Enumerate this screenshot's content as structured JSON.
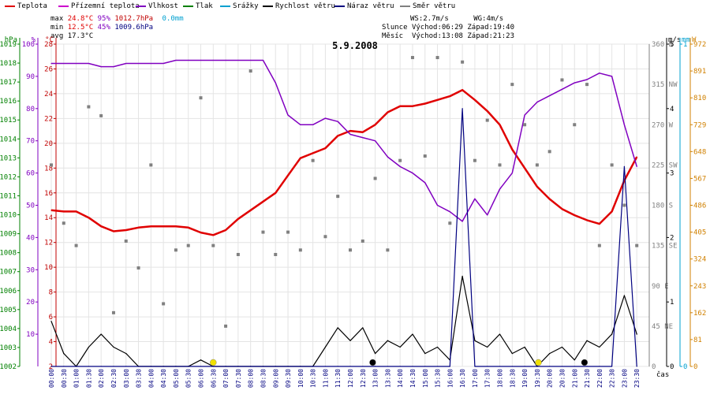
{
  "legend": [
    {
      "label": "Teplota",
      "color": "#e00000"
    },
    {
      "label": "Přízemní teplota",
      "color": "#cc00cc"
    },
    {
      "label": "Vlhkost",
      "color": "#8000c0"
    },
    {
      "label": "Tlak",
      "color": "#008000"
    },
    {
      "label": "Srážky",
      "color": "#00a0d0"
    },
    {
      "label": "Rychlost větru",
      "color": "#000000"
    },
    {
      "label": "Náraz větru",
      "color": "#000080"
    },
    {
      "label": "Směr větru",
      "color": "#808080"
    }
  ],
  "stats": {
    "max_label": "max",
    "max_temp": "24.8°C",
    "max_hum": "95%",
    "max_press": "1012.7hPa",
    "rain": "0.0mm",
    "min_label": "min",
    "min_temp": "12.5°C",
    "min_hum": "45%",
    "min_press": "1009.6hPa",
    "avg_label": "avg",
    "avg_temp": "17.3°C"
  },
  "wind_info": {
    "ws": "WS:2.7m/s",
    "wg": "WG:4m/s",
    "sun_label": "Slunce",
    "sunrise": "Východ:06:29",
    "sunset": "Západ:19:40",
    "moon_label": "Měsíc",
    "moonrise": "Východ:13:08",
    "moonset": "Západ:21:23"
  },
  "chart_data": {
    "type": "line",
    "title": "5.9.2008",
    "xlabel": "čas",
    "x_ticks": [
      "00:00",
      "00:30",
      "01:00",
      "01:30",
      "02:00",
      "02:30",
      "03:00",
      "03:30",
      "04:00",
      "04:30",
      "05:00",
      "05:30",
      "06:00",
      "06:30",
      "07:00",
      "07:30",
      "08:00",
      "08:30",
      "09:00",
      "09:30",
      "10:00",
      "10:30",
      "11:00",
      "11:30",
      "12:00",
      "12:30",
      "13:00",
      "13:30",
      "14:00",
      "14:30",
      "15:00",
      "15:30",
      "16:00",
      "16:30",
      "17:00",
      "17:30",
      "18:00",
      "18:30",
      "19:00",
      "19:30",
      "20:00",
      "20:30",
      "21:00",
      "21:30",
      "22:00",
      "22:30",
      "23:00",
      "23:30"
    ],
    "axes": {
      "hpa": {
        "label": "hPa",
        "ticks": [
          "1019",
          "1018",
          "1017",
          "1016",
          "1015",
          "1014",
          "1013",
          "1012",
          "1011",
          "1010",
          "1009",
          "1008",
          "1007",
          "1006",
          "1005",
          "1004",
          "1003",
          "1002"
        ],
        "range": [
          1002,
          1019
        ]
      },
      "pct": {
        "label": "%",
        "ticks": [
          "100",
          "90",
          "80",
          "70",
          "60",
          "50",
          "40",
          "30",
          "20",
          "10"
        ],
        "range": [
          0,
          100
        ]
      },
      "temp": {
        "label": "°C",
        "ticks": [
          "28",
          "26",
          "24",
          "22",
          "20",
          "18",
          "16",
          "14",
          "12",
          "10",
          "8",
          "6",
          "4",
          "2"
        ],
        "range": [
          2,
          28
        ]
      },
      "dir": {
        "ticks": [
          "360 N",
          "315 NW",
          "270 W",
          "225 SW",
          "180 S",
          "135 SE",
          "90 E",
          "45 NE",
          "0"
        ],
        "range": [
          0,
          360
        ]
      },
      "ms": {
        "label": "m/s",
        "ticks": [
          "5",
          "4",
          "3",
          "2",
          "1",
          "0"
        ],
        "range": [
          0,
          5
        ]
      },
      "mm": {
        "label": "mm",
        "ticks": [
          "1",
          "0"
        ],
        "range": [
          0,
          1
        ]
      },
      "w": {
        "label": "W",
        "ticks": [
          "972",
          "891",
          "810",
          "729",
          "648",
          "567",
          "486",
          "405",
          "324",
          "243",
          "162",
          "81",
          "0"
        ],
        "range": [
          0,
          972
        ]
      }
    },
    "series": [
      {
        "name": "Teplota",
        "unit": "°C",
        "x": [
          0,
          0.5,
          1,
          1.5,
          2,
          2.5,
          3,
          3.5,
          4,
          4.5,
          5,
          5.5,
          6,
          6.5,
          7,
          7.5,
          8,
          8.5,
          9,
          9.5,
          10,
          10.5,
          11,
          11.5,
          12,
          12.5,
          13,
          13.5,
          14,
          14.5,
          15,
          15.5,
          16,
          16.5,
          17,
          17.5,
          18,
          18.5,
          19,
          19.5,
          20,
          20.5,
          21,
          21.5,
          22,
          22.5,
          23,
          23.5
        ],
        "values": [
          14.6,
          14.5,
          14.5,
          14.0,
          13.3,
          12.9,
          13.0,
          13.2,
          13.3,
          13.3,
          13.3,
          13.2,
          12.8,
          12.6,
          13.0,
          13.9,
          14.6,
          15.3,
          16.0,
          17.4,
          18.8,
          19.2,
          19.6,
          20.6,
          21.0,
          20.9,
          21.5,
          22.5,
          23.0,
          23.0,
          23.2,
          23.5,
          23.8,
          24.3,
          23.5,
          22.6,
          21.5,
          19.5,
          18.0,
          16.5,
          15.5,
          14.7,
          14.2,
          13.8,
          13.5,
          14.5,
          17.0,
          18.9
        ]
      },
      {
        "name": "Vlhkost",
        "unit": "%",
        "x": [
          0,
          0.5,
          1,
          1.5,
          2,
          2.5,
          3,
          3.5,
          4,
          4.5,
          5,
          5.5,
          6,
          6.5,
          7,
          7.5,
          8,
          8.5,
          9,
          9.5,
          10,
          10.5,
          11,
          11.5,
          12,
          12.5,
          13,
          13.5,
          14,
          14.5,
          15,
          15.5,
          16,
          16.5,
          17,
          17.5,
          18,
          18.5,
          19,
          19.5,
          20,
          20.5,
          21,
          21.5,
          22,
          22.5,
          23,
          23.5
        ],
        "values": [
          94,
          94,
          94,
          94,
          93,
          93,
          94,
          94,
          94,
          94,
          95,
          95,
          95,
          95,
          95,
          95,
          95,
          95,
          88,
          78,
          75,
          75,
          77,
          76,
          72,
          71,
          70,
          65,
          62,
          60,
          57,
          50,
          48,
          45,
          52,
          47,
          55,
          60,
          78,
          82,
          84,
          86,
          88,
          89,
          91,
          90,
          75,
          62
        ]
      },
      {
        "name": "Rychlost větru",
        "unit": "m/s",
        "x": [
          0,
          0.5,
          1,
          1.5,
          2,
          2.5,
          3,
          3.5,
          4,
          4.5,
          5,
          5.5,
          6,
          6.5,
          7,
          7.5,
          8,
          8.5,
          9,
          9.5,
          10,
          10.5,
          11,
          11.5,
          12,
          12.5,
          13,
          13.5,
          14,
          14.5,
          15,
          15.5,
          16,
          16.5,
          17,
          17.5,
          18,
          18.5,
          19,
          19.5,
          20,
          20.5,
          21,
          21.5,
          22,
          22.5,
          23,
          23.5
        ],
        "values": [
          0.7,
          0.2,
          0,
          0.3,
          0.5,
          0.3,
          0.2,
          0,
          0,
          0,
          0,
          0,
          0.1,
          0,
          0,
          0,
          0,
          0,
          0,
          0,
          0,
          0,
          0.3,
          0.6,
          0.4,
          0.6,
          0.2,
          0.4,
          0.3,
          0.5,
          0.2,
          0.3,
          0.1,
          1.4,
          0.4,
          0.3,
          0.5,
          0.2,
          0.3,
          0,
          0.2,
          0.3,
          0.1,
          0.4,
          0.3,
          0.5,
          1.1,
          0.5
        ]
      },
      {
        "name": "Náraz větru",
        "unit": "m/s",
        "x": [
          0,
          0.5,
          1,
          1.5,
          2,
          2.5,
          3,
          3.5,
          4,
          4.5,
          5,
          5.5,
          6,
          6.5,
          7,
          7.5,
          8,
          8.5,
          9,
          9.5,
          10,
          10.5,
          11,
          11.5,
          12,
          12.5,
          13,
          13.5,
          14,
          14.5,
          15,
          15.5,
          16,
          16.5,
          17,
          17.5,
          18,
          18.5,
          19,
          19.5,
          20,
          20.5,
          21,
          21.5,
          22,
          22.5,
          23,
          23.5
        ],
        "values": [
          0,
          0,
          0,
          0,
          0,
          0,
          0,
          0,
          0,
          0,
          0,
          0,
          0,
          0,
          0,
          0,
          0,
          0,
          0,
          0,
          0,
          0,
          0,
          0,
          0,
          0,
          0,
          0,
          0,
          0,
          0,
          0,
          0,
          4.0,
          0,
          0,
          0,
          0,
          0,
          0,
          0,
          0,
          0,
          0,
          0,
          0,
          3.1,
          0
        ]
      },
      {
        "name": "Směr větru",
        "unit": "°",
        "type": "scatter",
        "x": [
          0,
          0.5,
          1,
          1.5,
          2,
          2.5,
          3,
          3.5,
          4,
          4.5,
          5,
          5.5,
          6,
          6.5,
          7,
          7.5,
          8,
          8.5,
          9,
          9.5,
          10,
          10.5,
          11,
          11.5,
          12,
          12.5,
          13,
          13.5,
          14,
          14.5,
          15,
          15.5,
          16,
          16.5,
          17,
          17.5,
          18,
          18.5,
          19,
          19.5,
          20,
          20.5,
          21,
          21.5,
          22,
          22.5,
          23,
          23.5
        ],
        "values": [
          225,
          160,
          135,
          290,
          280,
          60,
          140,
          110,
          225,
          70,
          130,
          135,
          300,
          135,
          45,
          125,
          330,
          150,
          125,
          150,
          130,
          230,
          145,
          190,
          130,
          140,
          210,
          130,
          230,
          345,
          235,
          345,
          160,
          340,
          230,
          275,
          225,
          315,
          270,
          225,
          240,
          320,
          270,
          315,
          135,
          225,
          180,
          135
        ]
      }
    ]
  }
}
